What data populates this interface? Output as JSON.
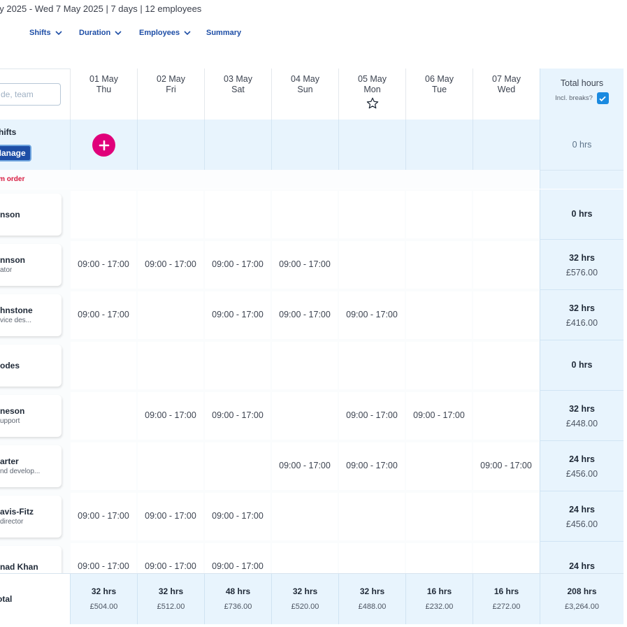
{
  "header": {
    "date_range": "ay 2025 - Wed 7 May 2025 | 7 days | 12 employees"
  },
  "filters": [
    {
      "label": "Shifts"
    },
    {
      "label": "Duration"
    },
    {
      "label": "Employees"
    },
    {
      "label": "Summary"
    }
  ],
  "search": {
    "placeholder": "de, team"
  },
  "days": [
    {
      "date": "01 May",
      "weekday": "Thu"
    },
    {
      "date": "02 May",
      "weekday": "Fri"
    },
    {
      "date": "03 May",
      "weekday": "Sat"
    },
    {
      "date": "04 May",
      "weekday": "Sun"
    },
    {
      "date": "05 May",
      "weekday": "Mon"
    },
    {
      "date": "06 May",
      "weekday": "Tue"
    },
    {
      "date": "07 May",
      "weekday": "Wed"
    }
  ],
  "total_header": {
    "label": "Total hours",
    "incl_breaks": "Incl. breaks?",
    "incl_breaks_checked": true
  },
  "open_shifts": {
    "label": "hifts",
    "manage_label": "Manage",
    "total": "0 hrs"
  },
  "custom_order": "om order",
  "employees": [
    {
      "name": "nson",
      "role": "",
      "shifts": [
        "",
        "",
        "",
        "",
        "",
        "",
        ""
      ],
      "total_hrs": "0 hrs",
      "total_cost": ""
    },
    {
      "name": "nnson",
      "role": "ator",
      "shifts": [
        "09:00 - 17:00",
        "09:00 - 17:00",
        "09:00 - 17:00",
        "09:00 - 17:00",
        "",
        "",
        ""
      ],
      "total_hrs": "32 hrs",
      "total_cost": "£576.00"
    },
    {
      "name": "hnstone",
      "role": "vice des...",
      "shifts": [
        "09:00 - 17:00",
        "",
        "09:00 - 17:00",
        "09:00 - 17:00",
        "09:00 - 17:00",
        "",
        ""
      ],
      "total_hrs": "32 hrs",
      "total_cost": "£416.00"
    },
    {
      "name": "odes",
      "role": "",
      "shifts": [
        "",
        "",
        "",
        "",
        "",
        "",
        ""
      ],
      "total_hrs": "0 hrs",
      "total_cost": ""
    },
    {
      "name": "neson",
      "role": "upport",
      "shifts": [
        "",
        "09:00 - 17:00",
        "09:00 - 17:00",
        "",
        "09:00 - 17:00",
        "09:00 - 17:00",
        ""
      ],
      "total_hrs": "32 hrs",
      "total_cost": "£448.00"
    },
    {
      "name": "arter",
      "role": "nd develop...",
      "shifts": [
        "",
        "",
        "",
        "09:00 - 17:00",
        "09:00 - 17:00",
        "",
        "09:00 - 17:00"
      ],
      "total_hrs": "24 hrs",
      "total_cost": "£456.00"
    },
    {
      "name": "avis-Fitz",
      "role": "director",
      "shifts": [
        "09:00 - 17:00",
        "09:00 - 17:00",
        "09:00 - 17:00",
        "",
        "",
        "",
        ""
      ],
      "total_hrs": "24 hrs",
      "total_cost": "£456.00"
    },
    {
      "name": "nad Khan",
      "role": "",
      "shifts": [
        "09:00 - 17:00",
        "09:00 - 17:00",
        "09:00 - 17:00",
        "",
        "",
        "",
        ""
      ],
      "total_hrs": "24 hrs",
      "total_cost": ""
    }
  ],
  "footer": {
    "label": "otal",
    "days": [
      {
        "hrs": "32 hrs",
        "cost": "£504.00"
      },
      {
        "hrs": "32 hrs",
        "cost": "£512.00"
      },
      {
        "hrs": "48 hrs",
        "cost": "£736.00"
      },
      {
        "hrs": "32 hrs",
        "cost": "£520.00"
      },
      {
        "hrs": "32 hrs",
        "cost": "£488.00"
      },
      {
        "hrs": "16 hrs",
        "cost": "£232.00"
      },
      {
        "hrs": "16 hrs",
        "cost": "£272.00"
      }
    ],
    "total_hrs": "208 hrs",
    "total_cost": "£3,264.00"
  },
  "colors": {
    "accent": "#1e4ea6",
    "add_button": "#e0007a",
    "total_bg": "#e8f4fd",
    "custom_order": "#d7193f",
    "checkbox": "#1b8ae0"
  },
  "icons": {
    "filter_chevron": "chevron-down-icon",
    "holiday": "star-icon",
    "add": "plus-icon",
    "checkbox": "check-icon"
  }
}
